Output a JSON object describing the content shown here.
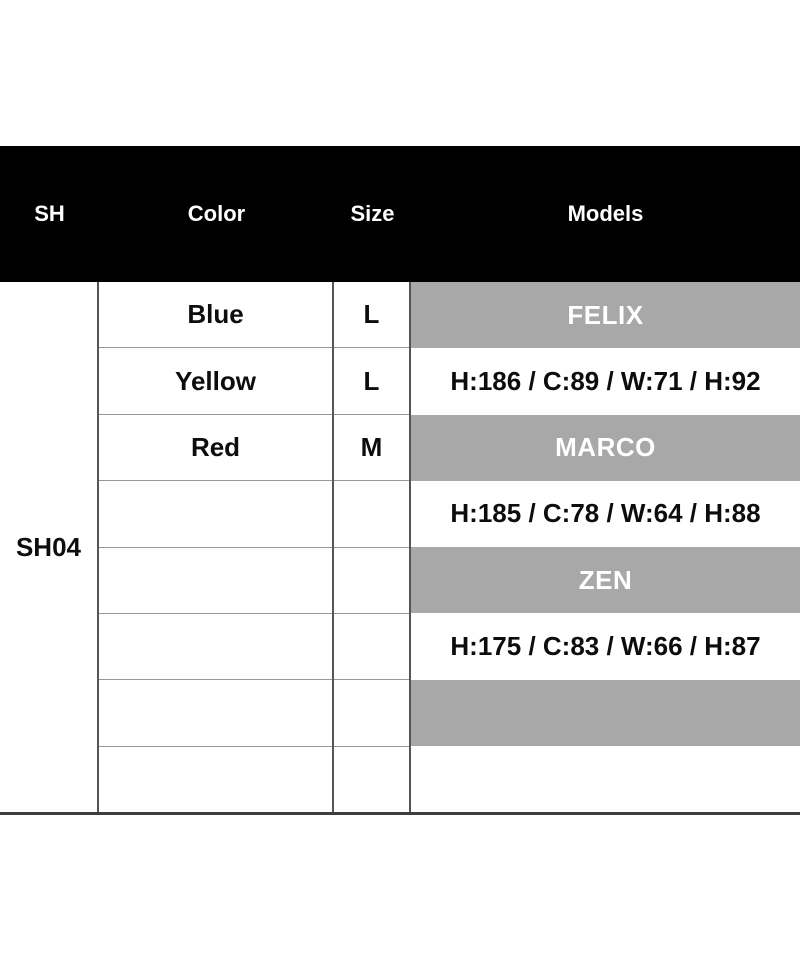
{
  "theme": {
    "page-bg": "#ffffff",
    "header-bg": "#000000",
    "header-text": "#ffffff",
    "highlight-bg": "#a8a8a8",
    "highlight-text": "#ffffff",
    "body-text": "#0d0d0d",
    "line-vertical": "#555555",
    "line-row": "#979797",
    "line-bottom": "#3c3c3c"
  },
  "chart_data": {
    "type": "table",
    "columns": [
      "SH",
      "Color",
      "Size",
      "Models"
    ],
    "group_id": "SH04",
    "rows": [
      {
        "color": "Blue",
        "size": "L",
        "models": "FELIX",
        "highlighted": true
      },
      {
        "color": "Yellow",
        "size": "L",
        "models": "H:186 / C:89 / W:71 / H:92",
        "highlighted": false
      },
      {
        "color": "Red",
        "size": "M",
        "models": "MARCO",
        "highlighted": true
      },
      {
        "color": "",
        "size": "",
        "models": "H:185 / C:78 / W:64 / H:88",
        "highlighted": false
      },
      {
        "color": "",
        "size": "",
        "models": "ZEN",
        "highlighted": true
      },
      {
        "color": "",
        "size": "",
        "models": "H:175 / C:83 / W:66 / H:87",
        "highlighted": false
      },
      {
        "color": "",
        "size": "",
        "models": "",
        "highlighted": true
      },
      {
        "color": "",
        "size": "",
        "models": "",
        "highlighted": false
      }
    ],
    "models_legend": [
      {
        "name": "FELIX",
        "measurements": "H:186 / C:89 / W:71 / H:92"
      },
      {
        "name": "MARCO",
        "measurements": "H:185 / C:78 / W:64 / H:88"
      },
      {
        "name": "ZEN",
        "measurements": "H:175 / C:83 / W:66 / H:87"
      }
    ]
  }
}
